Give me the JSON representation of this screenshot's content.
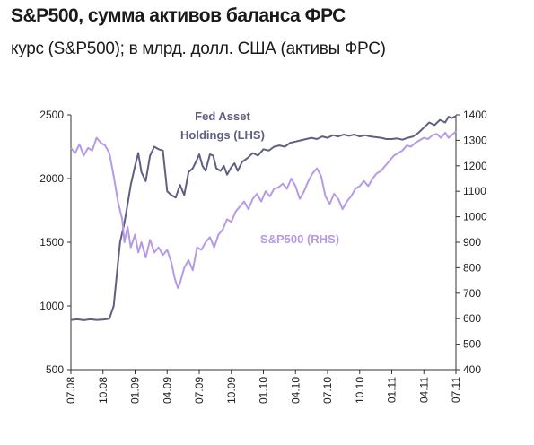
{
  "header": {
    "title": "S&P500, сумма активов баланса ФРС",
    "subtitle": "курс (S&P500); в млрд. долл. США (активы ФРС)"
  },
  "colors": {
    "fed": "#5f5f82",
    "sp500": "#b79ae6",
    "axis": "#333333"
  },
  "chart_data": {
    "type": "line",
    "x_tick_labels": [
      "07.08",
      "10.08",
      "01.09",
      "04.09",
      "07.09",
      "10.09",
      "01.10",
      "04.10",
      "07.10",
      "10.10",
      "01.11",
      "04.11",
      "07.11"
    ],
    "x_range_months": [
      0,
      36
    ],
    "left_axis": {
      "ticks": [
        500,
        1000,
        1500,
        2000,
        2500
      ],
      "range": [
        500,
        2500
      ]
    },
    "right_axis": {
      "ticks": [
        400,
        500,
        600,
        700,
        800,
        900,
        1000,
        1100,
        1200,
        1300,
        1400
      ],
      "range": [
        400,
        1400
      ]
    },
    "grid": false,
    "annotations": {
      "fed_line1": "Fed Asset",
      "fed_line2": "Holdings (LHS)",
      "sp500": "S&P500 (RHS)"
    },
    "series": [
      {
        "name": "Fed Asset Holdings (LHS)",
        "axis": "left",
        "points": [
          [
            0,
            890
          ],
          [
            0.6,
            895
          ],
          [
            1.2,
            888
          ],
          [
            1.8,
            895
          ],
          [
            2.4,
            890
          ],
          [
            3.0,
            893
          ],
          [
            3.6,
            900
          ],
          [
            4.0,
            1000
          ],
          [
            4.3,
            1250
          ],
          [
            4.6,
            1500
          ],
          [
            5.0,
            1650
          ],
          [
            5.3,
            1800
          ],
          [
            5.6,
            1950
          ],
          [
            6.0,
            2100
          ],
          [
            6.3,
            2200
          ],
          [
            6.6,
            2050
          ],
          [
            7.0,
            1980
          ],
          [
            7.4,
            2180
          ],
          [
            7.8,
            2250
          ],
          [
            8.2,
            2230
          ],
          [
            8.6,
            2220
          ],
          [
            9.0,
            1900
          ],
          [
            9.4,
            1870
          ],
          [
            9.8,
            1850
          ],
          [
            10.2,
            1950
          ],
          [
            10.6,
            1870
          ],
          [
            11.0,
            2050
          ],
          [
            11.4,
            2080
          ],
          [
            11.8,
            2150
          ],
          [
            12.0,
            2190
          ],
          [
            12.3,
            2100
          ],
          [
            12.6,
            2060
          ],
          [
            13.0,
            2190
          ],
          [
            13.3,
            2180
          ],
          [
            13.6,
            2080
          ],
          [
            14.0,
            2060
          ],
          [
            14.3,
            2100
          ],
          [
            14.6,
            2030
          ],
          [
            15.0,
            2090
          ],
          [
            15.3,
            2120
          ],
          [
            15.6,
            2060
          ],
          [
            16.0,
            2130
          ],
          [
            16.5,
            2160
          ],
          [
            17.0,
            2200
          ],
          [
            17.5,
            2180
          ],
          [
            18.0,
            2230
          ],
          [
            18.5,
            2220
          ],
          [
            19.0,
            2250
          ],
          [
            19.5,
            2260
          ],
          [
            20.0,
            2250
          ],
          [
            20.5,
            2280
          ],
          [
            21.0,
            2290
          ],
          [
            21.5,
            2300
          ],
          [
            22.0,
            2310
          ],
          [
            22.5,
            2320
          ],
          [
            23.0,
            2310
          ],
          [
            23.5,
            2330
          ],
          [
            24.0,
            2320
          ],
          [
            24.5,
            2340
          ],
          [
            25.0,
            2330
          ],
          [
            25.5,
            2345
          ],
          [
            26.0,
            2335
          ],
          [
            26.5,
            2345
          ],
          [
            27.0,
            2330
          ],
          [
            27.5,
            2340
          ],
          [
            28.0,
            2330
          ],
          [
            28.5,
            2325
          ],
          [
            29.0,
            2320
          ],
          [
            29.5,
            2310
          ],
          [
            30.0,
            2310
          ],
          [
            30.5,
            2315
          ],
          [
            31.0,
            2305
          ],
          [
            31.5,
            2320
          ],
          [
            32.0,
            2330
          ],
          [
            32.5,
            2360
          ],
          [
            33.0,
            2400
          ],
          [
            33.5,
            2440
          ],
          [
            34.0,
            2420
          ],
          [
            34.5,
            2460
          ],
          [
            35.0,
            2440
          ],
          [
            35.3,
            2485
          ],
          [
            35.6,
            2475
          ],
          [
            36.0,
            2490
          ]
        ]
      },
      {
        "name": "S&P500 (RHS)",
        "axis": "right",
        "points": [
          [
            0,
            1270
          ],
          [
            0.4,
            1250
          ],
          [
            0.8,
            1285
          ],
          [
            1.2,
            1240
          ],
          [
            1.6,
            1270
          ],
          [
            2.0,
            1260
          ],
          [
            2.4,
            1310
          ],
          [
            2.8,
            1290
          ],
          [
            3.2,
            1280
          ],
          [
            3.6,
            1250
          ],
          [
            4.0,
            1160
          ],
          [
            4.4,
            1060
          ],
          [
            4.8,
            990
          ],
          [
            5.0,
            900
          ],
          [
            5.3,
            960
          ],
          [
            5.6,
            880
          ],
          [
            6.0,
            930
          ],
          [
            6.3,
            860
          ],
          [
            6.6,
            900
          ],
          [
            7.0,
            840
          ],
          [
            7.4,
            910
          ],
          [
            7.8,
            860
          ],
          [
            8.2,
            880
          ],
          [
            8.6,
            850
          ],
          [
            9.0,
            870
          ],
          [
            9.4,
            820
          ],
          [
            9.7,
            760
          ],
          [
            10.0,
            720
          ],
          [
            10.2,
            740
          ],
          [
            10.6,
            800
          ],
          [
            11.0,
            830
          ],
          [
            11.4,
            790
          ],
          [
            11.8,
            880
          ],
          [
            12.2,
            870
          ],
          [
            12.6,
            900
          ],
          [
            13.0,
            920
          ],
          [
            13.4,
            880
          ],
          [
            13.8,
            930
          ],
          [
            14.2,
            950
          ],
          [
            14.6,
            990
          ],
          [
            15.0,
            980
          ],
          [
            15.4,
            1020
          ],
          [
            15.8,
            1040
          ],
          [
            16.2,
            1060
          ],
          [
            16.6,
            1030
          ],
          [
            17.0,
            1070
          ],
          [
            17.4,
            1090
          ],
          [
            17.8,
            1060
          ],
          [
            18.2,
            1100
          ],
          [
            18.6,
            1080
          ],
          [
            19.0,
            1110
          ],
          [
            19.4,
            1115
          ],
          [
            19.8,
            1130
          ],
          [
            20.2,
            1110
          ],
          [
            20.6,
            1150
          ],
          [
            21.0,
            1120
          ],
          [
            21.4,
            1070
          ],
          [
            21.8,
            1100
          ],
          [
            22.2,
            1140
          ],
          [
            22.6,
            1170
          ],
          [
            23.0,
            1190
          ],
          [
            23.4,
            1160
          ],
          [
            23.8,
            1080
          ],
          [
            24.2,
            1050
          ],
          [
            24.6,
            1090
          ],
          [
            25.0,
            1070
          ],
          [
            25.4,
            1030
          ],
          [
            25.8,
            1060
          ],
          [
            26.2,
            1080
          ],
          [
            26.6,
            1110
          ],
          [
            27.0,
            1120
          ],
          [
            27.4,
            1140
          ],
          [
            27.8,
            1120
          ],
          [
            28.2,
            1150
          ],
          [
            28.6,
            1170
          ],
          [
            29.0,
            1180
          ],
          [
            29.4,
            1200
          ],
          [
            29.8,
            1220
          ],
          [
            30.2,
            1240
          ],
          [
            30.6,
            1250
          ],
          [
            31.0,
            1260
          ],
          [
            31.4,
            1280
          ],
          [
            31.8,
            1275
          ],
          [
            32.2,
            1290
          ],
          [
            32.6,
            1300
          ],
          [
            33.0,
            1310
          ],
          [
            33.4,
            1305
          ],
          [
            33.8,
            1320
          ],
          [
            34.2,
            1325
          ],
          [
            34.6,
            1310
          ],
          [
            35.0,
            1330
          ],
          [
            35.3,
            1310
          ],
          [
            35.6,
            1320
          ],
          [
            36.0,
            1335
          ]
        ]
      }
    ]
  }
}
